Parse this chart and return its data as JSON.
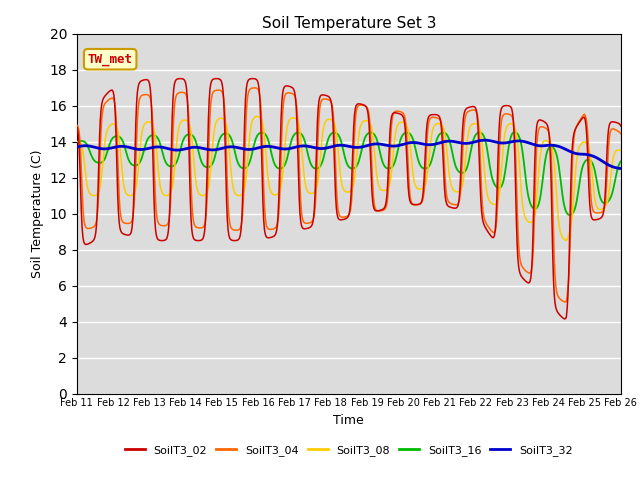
{
  "title": "Soil Temperature Set 3",
  "xlabel": "Time",
  "ylabel": "Soil Temperature (C)",
  "ylim": [
    0,
    20
  ],
  "yticks": [
    0,
    2,
    4,
    6,
    8,
    10,
    12,
    14,
    16,
    18,
    20
  ],
  "date_labels": [
    "Feb 11",
    "Feb 12",
    "Feb 13",
    "Feb 14",
    "Feb 15",
    "Feb 16",
    "Feb 17",
    "Feb 18",
    "Feb 19",
    "Feb 20",
    "Feb 21",
    "Feb 22",
    "Feb 23",
    "Feb 24",
    "Feb 25",
    "Feb 26"
  ],
  "annotation_text": "TW_met",
  "annotation_color": "#cc0000",
  "annotation_bg": "#ffffcc",
  "annotation_border": "#cc9900",
  "colors": {
    "SoilT3_02": "#cc0000",
    "SoilT3_04": "#ff6600",
    "SoilT3_08": "#ffcc00",
    "SoilT3_16": "#00bb00",
    "SoilT3_32": "#0000cc"
  },
  "bg_color": "#dcdcdc",
  "legend_colors": [
    "#cc0000",
    "#ff6600",
    "#ffcc00",
    "#00bb00",
    "#0000cc"
  ],
  "legend_labels": [
    "SoilT3_02",
    "SoilT3_04",
    "SoilT3_08",
    "SoilT3_16",
    "SoilT3_32"
  ]
}
